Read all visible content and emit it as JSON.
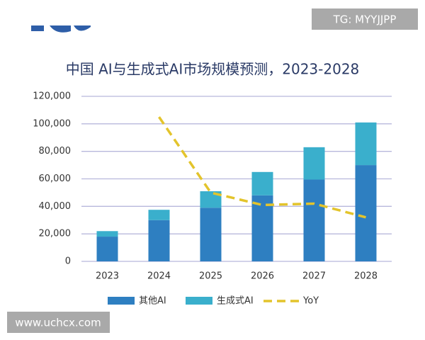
{
  "watermarks": [
    "TG: MYYJJPP",
    "www.uchcx.com"
  ],
  "chart_data": {
    "type": "stacked-bar-line",
    "title": "中国 AI与生成式AI市场规模预测，2023-2028",
    "categories": [
      "2023",
      "2024",
      "2025",
      "2026",
      "2027",
      "2028"
    ],
    "series": [
      {
        "name": "其他AI",
        "color": "#2e7fc1",
        "type": "bar",
        "values": [
          18000,
          30000,
          39000,
          48000,
          59500,
          70000
        ]
      },
      {
        "name": "生成式AI",
        "color": "#3aafcc",
        "type": "bar",
        "values": [
          4000,
          7500,
          12000,
          17000,
          23500,
          31000
        ]
      },
      {
        "name": "YoY",
        "color": "#e3c42c",
        "type": "line",
        "values": [
          null,
          105000,
          50000,
          41000,
          42000,
          32000
        ]
      }
    ],
    "ylim": [
      0,
      120000
    ],
    "yticks": [
      0,
      {
        "value": 20000,
        "label": "20,000"
      },
      {
        "value": 40000,
        "label": "40,000"
      },
      {
        "value": 60000,
        "label": "60,000"
      },
      {
        "value": 80000,
        "label": "80,000"
      },
      {
        "value": 100000,
        "label": "100,000"
      },
      {
        "value": 120000,
        "label": "120,000"
      }
    ],
    "grid": true
  }
}
